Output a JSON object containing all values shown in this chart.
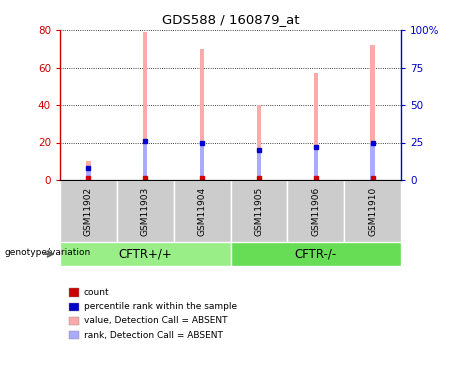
{
  "title": "GDS588 / 160879_at",
  "samples": [
    "GSM11902",
    "GSM11903",
    "GSM11904",
    "GSM11905",
    "GSM11906",
    "GSM11910"
  ],
  "values": [
    10,
    79,
    70,
    40,
    57,
    72
  ],
  "ranks": [
    8,
    26,
    25,
    20,
    22,
    25
  ],
  "count_values": [
    1,
    1,
    1,
    1,
    1,
    1
  ],
  "ylim_left": [
    0,
    80
  ],
  "ylim_right": [
    0,
    100
  ],
  "yticks_left": [
    0,
    20,
    40,
    60,
    80
  ],
  "yticks_right": [
    0,
    25,
    50,
    75,
    100
  ],
  "ytick_labels_left": [
    "0",
    "20",
    "40",
    "60",
    "80"
  ],
  "ytick_labels_right": [
    "0",
    "25",
    "50",
    "75",
    "100%"
  ],
  "left_axis_color": "#cc0000",
  "right_axis_color": "#0000cc",
  "bar_color_absent": "#ffaaaa",
  "rank_color_absent": "#aaaaff",
  "count_color": "#cc0000",
  "percentile_color": "#0000cc",
  "bar_width": 0.08,
  "rank_bar_width": 0.08,
  "groups_info": [
    {
      "label": "CFTR+/+",
      "start": 0,
      "end": 2,
      "color": "#99ee88"
    },
    {
      "label": "CFTR-/-",
      "start": 3,
      "end": 5,
      "color": "#66dd55"
    }
  ],
  "legend_items": [
    {
      "label": "count",
      "color": "#cc0000"
    },
    {
      "label": "percentile rank within the sample",
      "color": "#0000cc"
    },
    {
      "label": "value, Detection Call = ABSENT",
      "color": "#ffaaaa"
    },
    {
      "label": "rank, Detection Call = ABSENT",
      "color": "#aaaaff"
    }
  ],
  "genotype_label": "genotype/variation"
}
